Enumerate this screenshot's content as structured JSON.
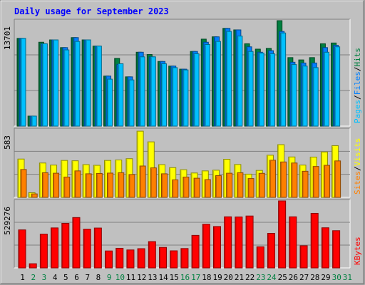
{
  "chart_data": {
    "type": "bar",
    "title": "Daily usage for September 2023",
    "colors": {
      "background": "#c0c0c0",
      "plot_background": "#ffffff",
      "title": "#0000ff",
      "hits": "#008040",
      "files": "#0080ff",
      "pages": "#00c0ff",
      "visits": "#ffff00",
      "sites": "#ff8000",
      "kbytes": "#ff0000",
      "weekend_label": "#008040",
      "weekday_label": "#000000"
    },
    "days": [
      "1",
      "2",
      "3",
      "4",
      "5",
      "6",
      "7",
      "8",
      "9",
      "10",
      "11",
      "12",
      "13",
      "14",
      "15",
      "16",
      "17",
      "18",
      "19",
      "20",
      "21",
      "22",
      "23",
      "24",
      "25",
      "26",
      "27",
      "28",
      "29",
      "30",
      "31"
    ],
    "weekend_days": [
      "2",
      "3",
      "9",
      "10",
      "16",
      "17",
      "23",
      "24",
      "30",
      "31"
    ],
    "panels": [
      {
        "id": "hits-files-pages",
        "ymax": 13701,
        "ymax_label": "13701",
        "legend": [
          "Pages",
          "Files",
          "Hits"
        ],
        "series": [
          {
            "name": "Hits",
            "values": [
              11400,
              1300,
              10900,
              11200,
              10200,
              11500,
              11200,
              10400,
              6500,
              8800,
              6400,
              9600,
              9300,
              8400,
              7800,
              7400,
              9700,
              11300,
              11600,
              12700,
              12500,
              10700,
              10000,
              10100,
              13700,
              8900,
              8600,
              8900,
              10700,
              10800
            ]
          },
          {
            "name": "Files",
            "values": [
              11400,
              1300,
              10700,
              11200,
              10200,
              11500,
              11200,
              10400,
              6500,
              8000,
              6400,
              9600,
              9000,
              8400,
              7800,
              7400,
              9700,
              10900,
              11600,
              12700,
              12500,
              10300,
              9600,
              9800,
              12300,
              8300,
              8200,
              8200,
              10200,
              10500
            ]
          },
          {
            "name": "Pages",
            "values": [
              11400,
              1300,
              10700,
              11200,
              9900,
              11000,
              11200,
              10400,
              6100,
              8100,
              6000,
              9000,
              9000,
              8100,
              7600,
              7300,
              9400,
              10600,
              11000,
              12300,
              11700,
              9700,
              9500,
              9400,
              12100,
              8000,
              7800,
              7600,
              9600,
              10300
            ]
          }
        ]
      },
      {
        "id": "visits-sites",
        "ymax": 583,
        "ymax_label": "583",
        "legend": [
          "Sites",
          "Visits"
        ],
        "series": [
          {
            "name": "Visits",
            "values": [
              330,
              40,
              296,
              278,
              318,
              315,
              282,
              276,
              318,
              322,
              333,
              570,
              478,
              282,
              256,
              238,
              210,
              228,
              234,
              328,
              283,
              200,
              232,
              363,
              454,
              348,
              278,
              347,
              391,
              445
            ]
          },
          {
            "name": "Sites",
            "values": [
              240,
              30,
              212,
              208,
              175,
              228,
              203,
              206,
              209,
              212,
              197,
              270,
              254,
              203,
              151,
              175,
              165,
              153,
              187,
              208,
              212,
              162,
              207,
              320,
              305,
              296,
              225,
              266,
              276,
              314
            ]
          }
        ]
      },
      {
        "id": "kbytes",
        "ymax": 529276,
        "ymax_label": "529276",
        "legend": [
          "KBytes"
        ],
        "series": [
          {
            "name": "KBytes",
            "values": [
              300500,
              33000,
              267000,
              316000,
              352000,
              398000,
              306000,
              315000,
              134000,
              155000,
              142000,
              152000,
              208000,
              162000,
              135000,
              153000,
              257000,
              345000,
              327000,
              404000,
              403000,
              410000,
              167000,
              273000,
              529276,
              404000,
              175000,
              431000,
              317000,
              294000
            ]
          }
        ]
      }
    ]
  }
}
